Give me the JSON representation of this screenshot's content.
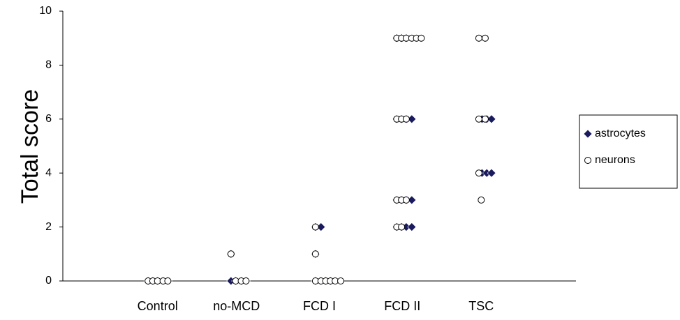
{
  "chart_data": {
    "type": "scatter",
    "ylabel": "Total score",
    "xlim": [
      0,
      6.5
    ],
    "ylim": [
      0,
      10
    ],
    "yticks": [
      0,
      2,
      4,
      6,
      8,
      10
    ],
    "xticks": [
      {
        "value": 1.2,
        "label": "Control"
      },
      {
        "value": 2.2,
        "label": "no-MCD"
      },
      {
        "value": 3.25,
        "label": "FCD I"
      },
      {
        "value": 4.3,
        "label": "FCD II"
      },
      {
        "value": 5.3,
        "label": "TSC"
      }
    ],
    "grid": false,
    "legend": "right",
    "series": [
      {
        "name": "astrocytes",
        "color": "#1a1a5e",
        "marker": "diamond",
        "x": [
          1.08,
          1.14,
          1.2,
          1.27,
          1.33,
          2.13,
          2.13,
          2.19,
          2.26,
          2.32,
          3.2,
          3.27,
          3.2,
          3.2,
          3.27,
          3.33,
          3.39,
          4.23,
          4.29,
          4.35,
          4.23,
          4.29,
          4.35,
          4.42,
          4.23,
          4.29,
          4.35,
          4.42,
          4.23,
          4.29,
          4.35,
          4.42,
          5.31,
          5.37,
          5.43,
          5.31,
          5.37,
          5.43
        ],
        "y": [
          0,
          0,
          0,
          0,
          0,
          1,
          0,
          0,
          0,
          0,
          2,
          2,
          1,
          0,
          0,
          0,
          0,
          9,
          9,
          9,
          6,
          6,
          6,
          6,
          3,
          3,
          3,
          3,
          2,
          2,
          2,
          2,
          6,
          6,
          6,
          4,
          4,
          4
        ]
      },
      {
        "name": "neurons",
        "color": "#ffffff",
        "marker": "circle",
        "x": [
          1.08,
          1.14,
          1.2,
          1.27,
          1.33,
          2.13,
          2.19,
          2.26,
          2.32,
          3.2,
          3.2,
          3.2,
          3.27,
          3.33,
          3.39,
          3.45,
          3.52,
          4.23,
          4.29,
          4.35,
          4.42,
          4.48,
          4.54,
          4.23,
          4.29,
          4.35,
          4.23,
          4.29,
          4.35,
          4.23,
          4.29,
          5.27,
          5.35,
          5.27,
          5.35,
          5.27,
          5.3
        ],
        "y": [
          0,
          0,
          0,
          0,
          0,
          1,
          0,
          0,
          0,
          2,
          1,
          0,
          0,
          0,
          0,
          0,
          0,
          9,
          9,
          9,
          9,
          9,
          9,
          6,
          6,
          6,
          3,
          3,
          3,
          2,
          2,
          9,
          9,
          6,
          6,
          4,
          3
        ]
      }
    ]
  }
}
